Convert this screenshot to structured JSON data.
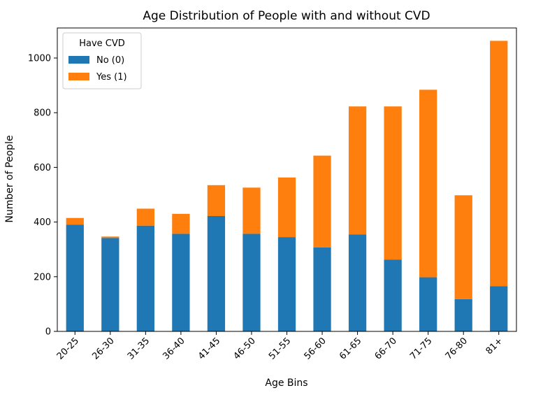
{
  "chart_data": {
    "type": "bar",
    "stacked": true,
    "title": "Age Distribution of People with and without CVD",
    "xlabel": "Age Bins",
    "ylabel": "Number of People",
    "ylim": [
      0,
      1110
    ],
    "yticks": [
      0,
      200,
      400,
      600,
      800,
      1000
    ],
    "categories": [
      "20-25",
      "26-30",
      "31-35",
      "36-40",
      "41-45",
      "46-50",
      "51-55",
      "56-60",
      "61-65",
      "66-70",
      "71-75",
      "76-80",
      "81+"
    ],
    "series": [
      {
        "name": "No (0)",
        "color": "#1f77b4",
        "values": [
          390,
          342,
          387,
          357,
          422,
          357,
          345,
          307,
          355,
          263,
          198,
          118,
          165
        ]
      },
      {
        "name": "Yes (1)",
        "color": "#ff7f0e",
        "values": [
          25,
          5,
          62,
          73,
          113,
          169,
          218,
          336,
          468,
          560,
          686,
          380,
          898
        ]
      }
    ],
    "legend": {
      "title": "Have CVD",
      "placement": "top-left"
    },
    "grid": false
  }
}
